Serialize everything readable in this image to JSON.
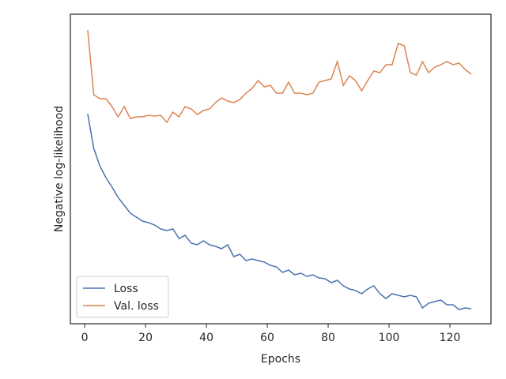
{
  "chart_data": {
    "type": "line",
    "x_label": "Epochs",
    "y_label": "Negative log-likelihood",
    "x": [
      1,
      3,
      5,
      7,
      9,
      11,
      13,
      15,
      17,
      19,
      21,
      23,
      25,
      27,
      29,
      31,
      33,
      35,
      37,
      39,
      41,
      43,
      45,
      47,
      49,
      51,
      53,
      55,
      57,
      59,
      61,
      63,
      65,
      67,
      69,
      71,
      73,
      75,
      77,
      79,
      81,
      83,
      85,
      87,
      89,
      91,
      93,
      95,
      97,
      99,
      101,
      103,
      105,
      107,
      109,
      111,
      113,
      115,
      117,
      119,
      121,
      123,
      125,
      127
    ],
    "series": [
      {
        "name": "Loss",
        "color": "#4c72b0",
        "values": [
          266,
          222,
          200,
          185,
          173,
          160,
          150,
          140,
          135,
          130,
          128,
          125,
          120,
          118,
          120,
          108,
          112,
          102,
          100,
          105,
          100,
          98,
          95,
          100,
          85,
          88,
          80,
          82,
          80,
          78,
          74,
          72,
          65,
          68,
          62,
          64,
          60,
          62,
          58,
          57,
          52,
          55,
          48,
          44,
          42,
          38,
          44,
          48,
          38,
          32,
          38,
          36,
          34,
          36,
          34,
          20,
          26,
          28,
          30,
          24,
          24,
          18,
          20,
          19
        ]
      },
      {
        "name": "Val. loss",
        "color": "#dd8452",
        "values": [
          372,
          290,
          285,
          285,
          275,
          262,
          275,
          260,
          262,
          262,
          264,
          263,
          264,
          255,
          268,
          262,
          275,
          272,
          265,
          270,
          272,
          280,
          286,
          282,
          280,
          284,
          292,
          298,
          308,
          300,
          302,
          292,
          292,
          306,
          292,
          292,
          290,
          292,
          306,
          308,
          310,
          332,
          302,
          314,
          308,
          295,
          308,
          320,
          318,
          328,
          328,
          355,
          352,
          318,
          315,
          332,
          318,
          325,
          328,
          332,
          328,
          330,
          322,
          316
        ]
      }
    ],
    "xlim": [
      -4.7,
      133.5
    ],
    "xticks": [
      0,
      20,
      40,
      60,
      80,
      100,
      120
    ],
    "ylim": [
      0,
      392
    ],
    "legend": "lower left"
  }
}
